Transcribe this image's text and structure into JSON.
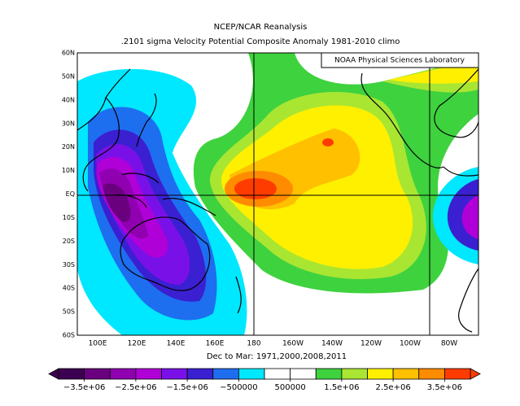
{
  "title": "NCEP/NCAR Reanalysis",
  "subtitle": ".2101 sigma Velocity Potential  Composite Anomaly 1981-2010 climo",
  "credit": "NOAA Physical Sciences Laboratory",
  "period": "Dec to Mar: 1971,2000,2008,2011",
  "lat_labels": [
    "60N",
    "50N",
    "40N",
    "30N",
    "20N",
    "10N",
    "EQ",
    "10S",
    "20S",
    "30S",
    "40S",
    "50S",
    "60S"
  ],
  "lon_labels": [
    "100E",
    "120E",
    "140E",
    "160E",
    "180",
    "160W",
    "140W",
    "120W",
    "100W",
    "80W"
  ],
  "colorbar": {
    "lim": [
      -4000000,
      4000000
    ],
    "ticks": [
      {
        "value": -3500000,
        "label": "−3.5e+06"
      },
      {
        "value": -2500000,
        "label": "−2.5e+06"
      },
      {
        "value": -1500000,
        "label": "−1.5e+06"
      },
      {
        "value": -500000,
        "label": "−500000"
      },
      500000,
      {
        "value": 1500000,
        "label": "1.5e+06"
      },
      {
        "value": 2500000,
        "label": "2.5e+06"
      },
      {
        "value": 3500000,
        "label": "3.5e+06"
      }
    ],
    "colors": [
      "#3c0050",
      "#6a007e",
      "#9000b0",
      "#b000d8",
      "#7a10e8",
      "#3a20d0",
      "#1e6ef0",
      "#00e8ff",
      "#ffffff",
      "#ffffff",
      "#3ed23e",
      "#a8e632",
      "#fff000",
      "#ffc000",
      "#ff8c00",
      "#ff3c00"
    ]
  }
}
